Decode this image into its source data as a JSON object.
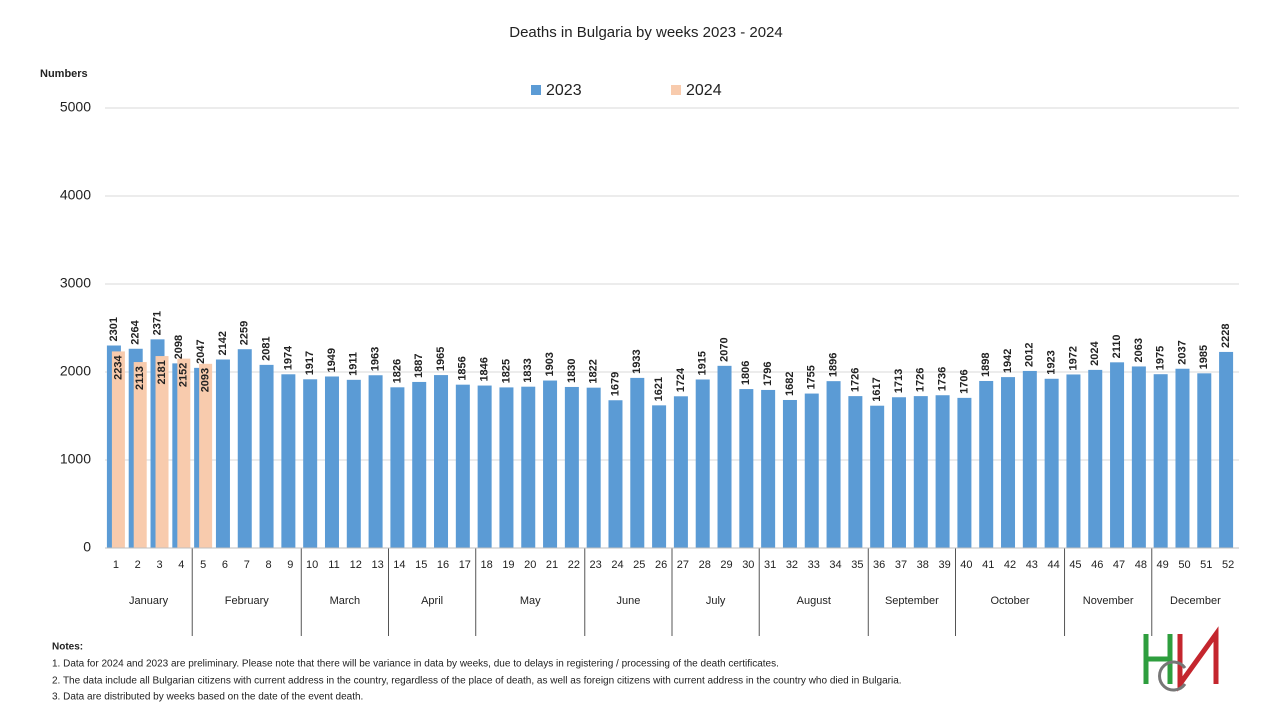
{
  "chart_data": {
    "type": "bar",
    "title": "Deaths in Bulgaria by weeks 2023 - 2024",
    "y_axis_label": "Numbers",
    "categories": [
      "1",
      "2",
      "3",
      "4",
      "5",
      "6",
      "7",
      "8",
      "9",
      "10",
      "11",
      "12",
      "13",
      "14",
      "15",
      "16",
      "17",
      "18",
      "19",
      "20",
      "21",
      "22",
      "23",
      "24",
      "25",
      "26",
      "27",
      "28",
      "29",
      "30",
      "31",
      "32",
      "33",
      "34",
      "35",
      "36",
      "37",
      "38",
      "39",
      "40",
      "41",
      "42",
      "43",
      "44",
      "45",
      "46",
      "47",
      "48",
      "49",
      "50",
      "51",
      "52"
    ],
    "month_groups": [
      {
        "label": "January",
        "span": 4
      },
      {
        "label": "February",
        "span": 5
      },
      {
        "label": "March",
        "span": 4
      },
      {
        "label": "April",
        "span": 4
      },
      {
        "label": "May",
        "span": 5
      },
      {
        "label": "June",
        "span": 4
      },
      {
        "label": "July",
        "span": 4
      },
      {
        "label": "August",
        "span": 5
      },
      {
        "label": "September",
        "span": 4
      },
      {
        "label": "October",
        "span": 5
      },
      {
        "label": "November",
        "span": 4
      },
      {
        "label": "December",
        "span": 4
      }
    ],
    "series": [
      {
        "name": "2023",
        "color": "#5b9bd5",
        "label_color": "#1f6fbf",
        "values": [
          2301,
          2264,
          2371,
          2098,
          2047,
          2142,
          2259,
          2081,
          1974,
          1917,
          1949,
          1911,
          1963,
          1826,
          1887,
          1965,
          1856,
          1846,
          1825,
          1833,
          1903,
          1830,
          1822,
          1679,
          1933,
          1621,
          1724,
          1915,
          2070,
          1806,
          1796,
          1682,
          1755,
          1896,
          1726,
          1617,
          1713,
          1726,
          1736,
          1706,
          1898,
          1942,
          2012,
          1923,
          1972,
          2024,
          2110,
          2063,
          1975,
          2037,
          1985,
          2228
        ]
      },
      {
        "name": "2024",
        "color": "#f8cbad",
        "label_color": "#ed7d31",
        "values": [
          2234,
          2113,
          2181,
          2152,
          2093,
          null,
          null,
          null,
          null,
          null,
          null,
          null,
          null,
          null,
          null,
          null,
          null,
          null,
          null,
          null,
          null,
          null,
          null,
          null,
          null,
          null,
          null,
          null,
          null,
          null,
          null,
          null,
          null,
          null,
          null,
          null,
          null,
          null,
          null,
          null,
          null,
          null,
          null,
          null,
          null,
          null,
          null,
          null,
          null,
          null,
          null,
          null
        ]
      }
    ],
    "ylim": [
      0,
      5000
    ],
    "yticks": [
      0,
      1000,
      2000,
      3000,
      4000,
      5000
    ],
    "grid": true,
    "legend": "top"
  },
  "notes": {
    "title": "Notes:",
    "items": [
      "1. Data for 2024 and 2023 are preliminary. Please note that there will be variance in data by weeks, due to delays in registering / processing of the death certificates.",
      "2. The data include all Bulgarian citizens with current address in the country, regardless of the place of death, as well as foreign citizens with current address in the country who died in Bulgaria.",
      "3. Data are distributed by weeks based on the date of the event death."
    ]
  }
}
